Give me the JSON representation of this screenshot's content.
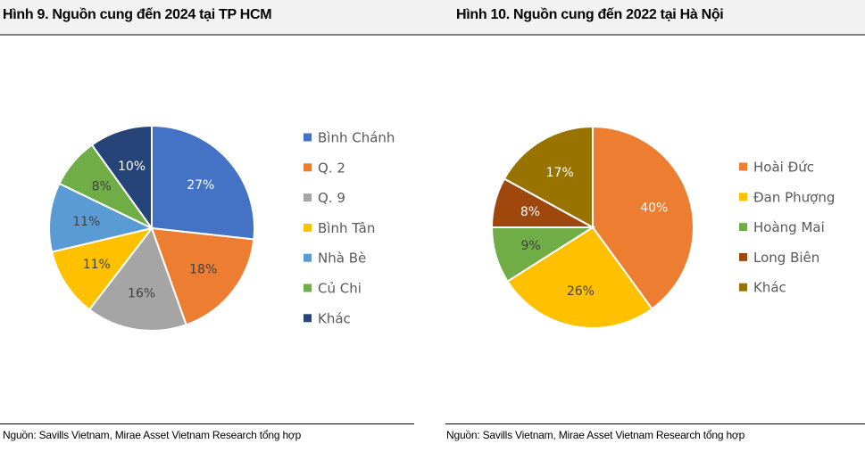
{
  "header": {
    "left_title": "Hình 9. Nguồn cung đến 2024 tại TP HCM",
    "right_title": "Hình 10. Nguồn cung đến 2022 tại Hà Nội"
  },
  "footer": {
    "left_source": "Nguồn: Savills Vietnam, Mirae Asset Vietnam Research tổng hợp",
    "right_source": "Nguồn: Savills Vietnam, Mirae Asset Vietnam Research tổng hợp"
  },
  "chart_data": [
    {
      "type": "pie",
      "title": "Hình 9. Nguồn cung đến 2024 tại TP HCM",
      "legend_position": "right",
      "slices": [
        {
          "label": "Bình Chánh",
          "value": 27,
          "display": "27%",
          "color": "#4472c4",
          "label_color": "#ffffff"
        },
        {
          "label": "Q. 2",
          "value": 18,
          "display": "18%",
          "color": "#ed7d31",
          "label_color": "#404040"
        },
        {
          "label": "Q. 9",
          "value": 16,
          "display": "16%",
          "color": "#a5a5a5",
          "label_color": "#404040"
        },
        {
          "label": "Bình Tân",
          "value": 11,
          "display": "11%",
          "color": "#ffc000",
          "label_color": "#404040"
        },
        {
          "label": "Nhà Bè",
          "value": 11,
          "display": "11%",
          "color": "#5b9bd5",
          "label_color": "#404040"
        },
        {
          "label": "Củ Chi",
          "value": 8,
          "display": "8%",
          "color": "#70ad47",
          "label_color": "#404040"
        },
        {
          "label": "Khác",
          "value": 10,
          "display": "10%",
          "color": "#264478",
          "label_color": "#ffffff"
        }
      ]
    },
    {
      "type": "pie",
      "title": "Hình 10. Nguồn cung đến 2022 tại Hà Nội",
      "legend_position": "right",
      "slices": [
        {
          "label": "Hoài Đức",
          "value": 40,
          "display": "40%",
          "color": "#ed7d31",
          "label_color": "#ffffff"
        },
        {
          "label": "Đan Phượng",
          "value": 26,
          "display": "26%",
          "color": "#ffc000",
          "label_color": "#404040"
        },
        {
          "label": "Hoàng Mai",
          "value": 9,
          "display": "9%",
          "color": "#70ad47",
          "label_color": "#404040"
        },
        {
          "label": "Long Biên",
          "value": 8,
          "display": "8%",
          "color": "#9e480e",
          "label_color": "#ffffff"
        },
        {
          "label": "Khác",
          "value": 17,
          "display": "17%",
          "color": "#997300",
          "label_color": "#ffffff"
        }
      ]
    }
  ]
}
